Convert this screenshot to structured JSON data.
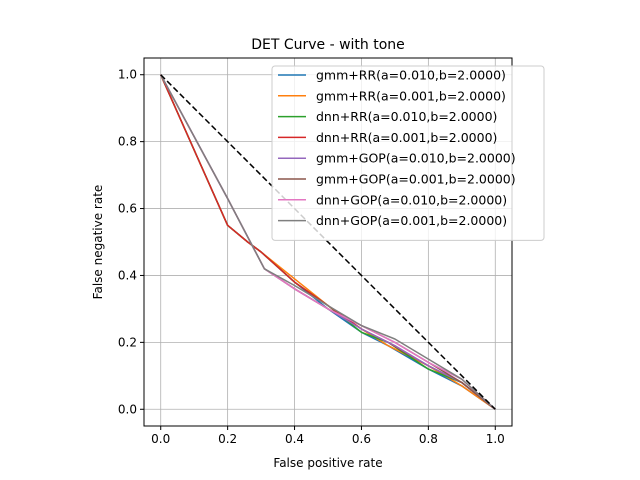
{
  "chart_data": {
    "type": "line",
    "title": "DET Curve - with tone",
    "xlabel": "False positive rate",
    "ylabel": "False negative rate",
    "xlim": [
      -0.05,
      1.05
    ],
    "ylim": [
      -0.05,
      1.05
    ],
    "xticks": [
      0.0,
      0.2,
      0.4,
      0.6,
      0.8,
      1.0
    ],
    "xtick_labels": [
      "0.0",
      "0.2",
      "0.4",
      "0.6",
      "0.8",
      "1.0"
    ],
    "yticks": [
      0.0,
      0.2,
      0.4,
      0.6,
      0.8,
      1.0
    ],
    "ytick_labels": [
      "0.0",
      "0.2",
      "0.4",
      "0.6",
      "0.8",
      "1.0"
    ],
    "grid": true,
    "legend_position": "top-right",
    "reference_line": {
      "x": [
        0,
        1
      ],
      "y": [
        1,
        0
      ],
      "color": "#000000",
      "style": "dashed"
    },
    "series": [
      {
        "name": "gmm+RR(a=0.010,b=2.0000)",
        "color": "#1f77b4",
        "x": [
          0,
          0.2,
          0.26,
          0.3,
          0.4,
          0.5,
          0.6,
          0.68,
          0.8,
          0.9,
          1.0
        ],
        "y": [
          1,
          0.55,
          0.5,
          0.47,
          0.38,
          0.3,
          0.23,
          0.19,
          0.12,
          0.07,
          0
        ]
      },
      {
        "name": "gmm+RR(a=0.001,b=2.0000)",
        "color": "#ff7f0e",
        "x": [
          0,
          0.2,
          0.26,
          0.3,
          0.4,
          0.5,
          0.6,
          0.68,
          0.8,
          0.9,
          1.0
        ],
        "y": [
          1,
          0.55,
          0.5,
          0.47,
          0.39,
          0.31,
          0.24,
          0.19,
          0.13,
          0.07,
          0
        ]
      },
      {
        "name": "dnn+RR(a=0.010,b=2.0000)",
        "color": "#2ca02c",
        "x": [
          0,
          0.2,
          0.26,
          0.3,
          0.4,
          0.5,
          0.6,
          0.68,
          0.8,
          0.9,
          1.0
        ],
        "y": [
          1,
          0.55,
          0.5,
          0.47,
          0.38,
          0.31,
          0.23,
          0.2,
          0.12,
          0.08,
          0
        ]
      },
      {
        "name": "dnn+RR(a=0.001,b=2.0000)",
        "color": "#d62728",
        "x": [
          0,
          0.2,
          0.26,
          0.3,
          0.4,
          0.5,
          0.6,
          0.68,
          0.8,
          0.9,
          1.0
        ],
        "y": [
          1,
          0.55,
          0.5,
          0.47,
          0.38,
          0.31,
          0.24,
          0.2,
          0.13,
          0.08,
          0
        ]
      },
      {
        "name": "gmm+GOP(a=0.010,b=2.0000)",
        "color": "#9467bd",
        "x": [
          0,
          0.2,
          0.31,
          0.4,
          0.5,
          0.6,
          0.7,
          0.8,
          0.9,
          1.0
        ],
        "y": [
          1,
          0.63,
          0.42,
          0.36,
          0.3,
          0.24,
          0.19,
          0.13,
          0.08,
          0
        ]
      },
      {
        "name": "gmm+GOP(a=0.001,b=2.0000)",
        "color": "#8c564b",
        "x": [
          0,
          0.2,
          0.31,
          0.4,
          0.5,
          0.6,
          0.7,
          0.8,
          0.9,
          1.0
        ],
        "y": [
          1,
          0.63,
          0.42,
          0.36,
          0.3,
          0.25,
          0.2,
          0.14,
          0.08,
          0
        ]
      },
      {
        "name": "dnn+GOP(a=0.010,b=2.0000)",
        "color": "#e377c2",
        "x": [
          0,
          0.2,
          0.31,
          0.4,
          0.5,
          0.6,
          0.7,
          0.8,
          0.9,
          1.0
        ],
        "y": [
          1,
          0.63,
          0.42,
          0.36,
          0.3,
          0.25,
          0.2,
          0.14,
          0.09,
          0
        ]
      },
      {
        "name": "dnn+GOP(a=0.001,b=2.0000)",
        "color": "#7f7f7f",
        "x": [
          0,
          0.2,
          0.31,
          0.4,
          0.5,
          0.6,
          0.7,
          0.8,
          0.9,
          1.0
        ],
        "y": [
          1,
          0.63,
          0.42,
          0.37,
          0.31,
          0.25,
          0.21,
          0.15,
          0.09,
          0
        ]
      }
    ]
  }
}
